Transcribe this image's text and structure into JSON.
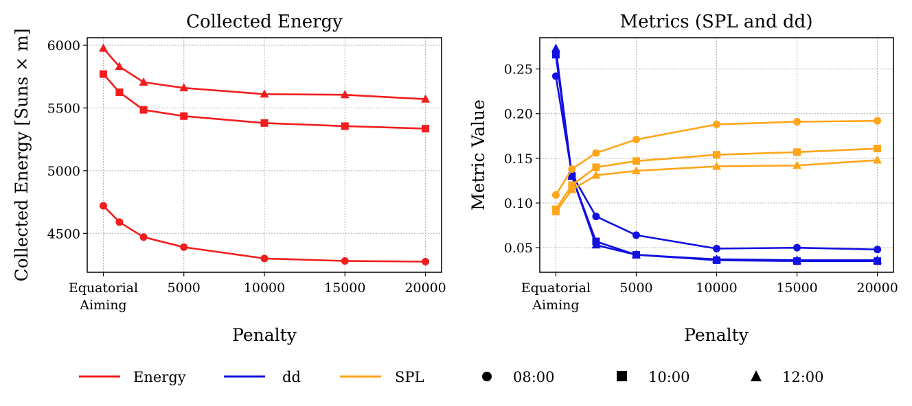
{
  "legend": {
    "energy": "Energy",
    "dd": "dd",
    "spl": "SPL",
    "t0800": "08:00",
    "t1000": "10:00",
    "t1200": "12:00"
  },
  "colors": {
    "energy": "#f21d1d",
    "dd": "#1010e0",
    "spl": "#ffa51a",
    "grid": "#b0b0b0"
  },
  "chart_data": [
    {
      "type": "line",
      "title": "Collected Energy",
      "xlabel": "Penalty",
      "ylabel": "Collected Energy [Suns × m]",
      "x": [
        0,
        1000,
        2500,
        5000,
        10000,
        15000,
        20000
      ],
      "xticks": [
        {
          "value": 0,
          "lines": [
            "Equatorial",
            "Aiming"
          ]
        },
        {
          "value": 5000,
          "lines": [
            "5000"
          ]
        },
        {
          "value": 10000,
          "lines": [
            "10000"
          ]
        },
        {
          "value": 15000,
          "lines": [
            "15000"
          ]
        },
        {
          "value": 20000,
          "lines": [
            "20000"
          ]
        }
      ],
      "yticks": [
        4500,
        5000,
        5500,
        6000
      ],
      "ylim": [
        4190,
        6060
      ],
      "xlim": [
        -1000,
        21000
      ],
      "grid": true,
      "series": [
        {
          "name": "Energy 08:00",
          "metric": "energy",
          "marker": "circle",
          "values": [
            4720,
            4590,
            4470,
            4390,
            4300,
            4280,
            4275
          ]
        },
        {
          "name": "Energy 10:00",
          "metric": "energy",
          "marker": "square",
          "values": [
            5770,
            5625,
            5485,
            5435,
            5380,
            5355,
            5335
          ]
        },
        {
          "name": "Energy 12:00",
          "metric": "energy",
          "marker": "triangle",
          "values": [
            5975,
            5830,
            5705,
            5660,
            5610,
            5605,
            5570
          ]
        }
      ]
    },
    {
      "type": "line",
      "title": "Metrics (SPL and dd)",
      "xlabel": "Penalty",
      "ylabel": "Metric Value",
      "x": [
        0,
        1000,
        2500,
        5000,
        10000,
        15000,
        20000
      ],
      "xticks": [
        {
          "value": 0,
          "lines": [
            "Equatorial",
            "Aiming"
          ]
        },
        {
          "value": 5000,
          "lines": [
            "5000"
          ]
        },
        {
          "value": 10000,
          "lines": [
            "10000"
          ]
        },
        {
          "value": 15000,
          "lines": [
            "15000"
          ]
        },
        {
          "value": 20000,
          "lines": [
            "20000"
          ]
        }
      ],
      "yticks": [
        0.05,
        0.1,
        0.15,
        0.2,
        0.25
      ],
      "ylim": [
        0.0225,
        0.285
      ],
      "xlim": [
        -1000,
        21000
      ],
      "grid": true,
      "series": [
        {
          "name": "dd 08:00",
          "metric": "dd",
          "marker": "circle",
          "values": [
            0.242,
            0.132,
            0.085,
            0.064,
            0.049,
            0.05,
            0.048
          ]
        },
        {
          "name": "dd 10:00",
          "metric": "dd",
          "marker": "square",
          "values": [
            0.266,
            0.13,
            0.057,
            0.042,
            0.036,
            0.035,
            0.035
          ]
        },
        {
          "name": "dd 12:00",
          "metric": "dd",
          "marker": "triangle",
          "values": [
            0.273,
            0.13,
            0.053,
            0.042,
            0.037,
            0.036,
            0.036
          ]
        },
        {
          "name": "SPL 08:00",
          "metric": "spl",
          "marker": "circle",
          "values": [
            0.109,
            0.138,
            0.156,
            0.171,
            0.188,
            0.191,
            0.192
          ]
        },
        {
          "name": "SPL 10:00",
          "metric": "spl",
          "marker": "square",
          "values": [
            0.093,
            0.12,
            0.14,
            0.147,
            0.154,
            0.157,
            0.161
          ]
        },
        {
          "name": "SPL 12:00",
          "metric": "spl",
          "marker": "triangle",
          "values": [
            0.09,
            0.115,
            0.131,
            0.136,
            0.141,
            0.142,
            0.148
          ]
        }
      ]
    }
  ]
}
